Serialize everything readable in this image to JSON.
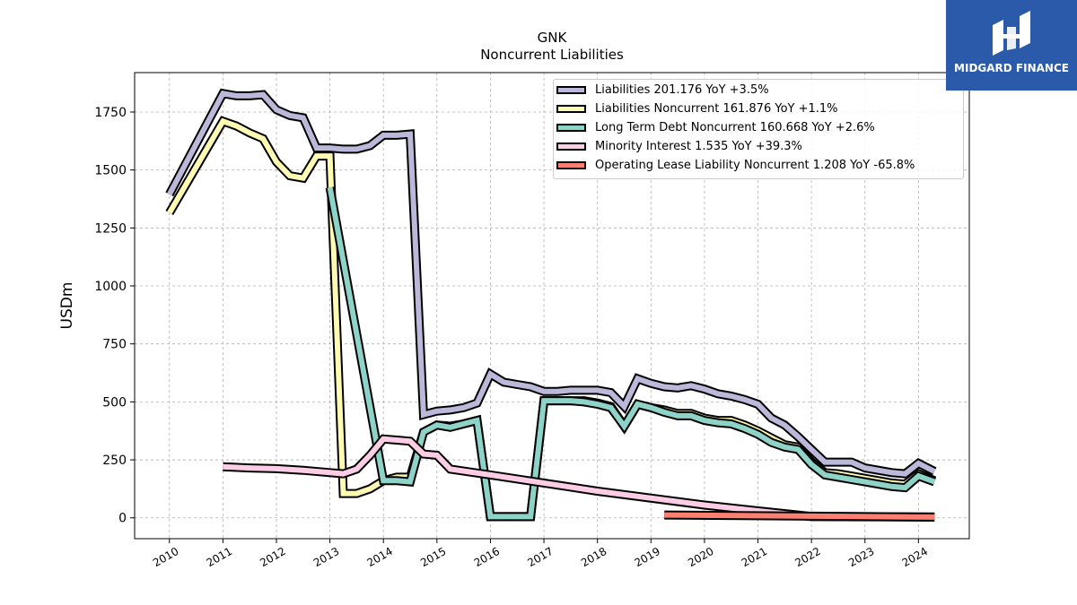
{
  "header": {
    "title": "GNK",
    "subtitle": "Noncurrent  Liabilities"
  },
  "logo": {
    "text": "MIDGARD FINANCE",
    "background": "#2b5aaa"
  },
  "chart_data": {
    "type": "line",
    "ylabel": "USDm",
    "xlabel": "",
    "xlim": [
      2009.35,
      2024.95
    ],
    "ylim": [
      -90,
      1920
    ],
    "grid": true,
    "legend_position": "top-right",
    "x_ticks": [
      "2010",
      "2011",
      "2012",
      "2013",
      "2014",
      "2015",
      "2016",
      "2017",
      "2018",
      "2019",
      "2020",
      "2021",
      "2022",
      "2023",
      "2024"
    ],
    "y_ticks": [
      "0",
      "250",
      "500",
      "750",
      "1000",
      "1250",
      "1500",
      "1750"
    ],
    "series": [
      {
        "name": "Liabilities",
        "legend": "Liabilities  201.176 YoY +3.5%",
        "color": "#bcb8d9",
        "points": [
          [
            2010.0,
            1395
          ],
          [
            2011.0,
            1830
          ],
          [
            2011.25,
            1820
          ],
          [
            2011.5,
            1820
          ],
          [
            2011.75,
            1825
          ],
          [
            2012.0,
            1760
          ],
          [
            2012.25,
            1735
          ],
          [
            2012.5,
            1725
          ],
          [
            2012.75,
            1595
          ],
          [
            2013.0,
            1595
          ],
          [
            2013.25,
            1590
          ],
          [
            2013.5,
            1590
          ],
          [
            2013.75,
            1605
          ],
          [
            2014.0,
            1650
          ],
          [
            2014.25,
            1650
          ],
          [
            2014.5,
            1655
          ],
          [
            2014.75,
            445
          ],
          [
            2015.0,
            460
          ],
          [
            2015.25,
            465
          ],
          [
            2015.5,
            475
          ],
          [
            2015.75,
            495
          ],
          [
            2016.0,
            620
          ],
          [
            2016.25,
            585
          ],
          [
            2016.5,
            575
          ],
          [
            2016.75,
            565
          ],
          [
            2017.0,
            545
          ],
          [
            2017.25,
            545
          ],
          [
            2017.5,
            550
          ],
          [
            2017.75,
            550
          ],
          [
            2018.0,
            550
          ],
          [
            2018.25,
            540
          ],
          [
            2018.5,
            480
          ],
          [
            2018.75,
            600
          ],
          [
            2019.0,
            580
          ],
          [
            2019.25,
            565
          ],
          [
            2019.5,
            560
          ],
          [
            2019.75,
            570
          ],
          [
            2020.0,
            555
          ],
          [
            2020.25,
            535
          ],
          [
            2020.5,
            525
          ],
          [
            2020.75,
            510
          ],
          [
            2021.0,
            490
          ],
          [
            2021.25,
            430
          ],
          [
            2021.5,
            400
          ],
          [
            2021.75,
            350
          ],
          [
            2022.0,
            295
          ],
          [
            2022.25,
            240
          ],
          [
            2022.5,
            240
          ],
          [
            2022.75,
            240
          ],
          [
            2023.0,
            215
          ],
          [
            2023.25,
            205
          ],
          [
            2023.5,
            195
          ],
          [
            2023.75,
            190
          ],
          [
            2024.0,
            235
          ],
          [
            2024.3,
            200
          ]
        ]
      },
      {
        "name": "Liabilities Noncurrent",
        "legend": "Liabilities Noncurrent  161.876 YoY +1.1%",
        "color": "#fffbb3",
        "points": [
          [
            2010.0,
            1315
          ],
          [
            2011.0,
            1710
          ],
          [
            2011.25,
            1690
          ],
          [
            2011.5,
            1660
          ],
          [
            2011.75,
            1635
          ],
          [
            2012.0,
            1535
          ],
          [
            2012.25,
            1475
          ],
          [
            2012.5,
            1465
          ],
          [
            2012.75,
            1560
          ],
          [
            2013.0,
            1560
          ],
          [
            2013.25,
            105
          ],
          [
            2013.5,
            105
          ],
          [
            2013.75,
            125
          ],
          [
            2014.0,
            160
          ],
          [
            2014.25,
            175
          ],
          [
            2014.5,
            175
          ],
          [
            2014.75,
            370
          ],
          [
            2015.0,
            400
          ],
          [
            2015.25,
            395
          ],
          [
            2015.5,
            405
          ],
          [
            2015.75,
            420
          ],
          [
            2016.0,
            5
          ],
          [
            2016.25,
            5
          ],
          [
            2016.5,
            5
          ],
          [
            2016.75,
            5
          ],
          [
            2017.0,
            505
          ],
          [
            2017.25,
            505
          ],
          [
            2017.5,
            505
          ],
          [
            2017.75,
            505
          ],
          [
            2018.0,
            495
          ],
          [
            2018.25,
            480
          ],
          [
            2018.5,
            395
          ],
          [
            2018.75,
            490
          ],
          [
            2019.0,
            475
          ],
          [
            2019.25,
            465
          ],
          [
            2019.5,
            450
          ],
          [
            2019.75,
            450
          ],
          [
            2020.0,
            430
          ],
          [
            2020.25,
            420
          ],
          [
            2020.5,
            420
          ],
          [
            2020.75,
            400
          ],
          [
            2021.0,
            375
          ],
          [
            2021.25,
            345
          ],
          [
            2021.5,
            315
          ],
          [
            2021.75,
            305
          ],
          [
            2022.0,
            240
          ],
          [
            2022.25,
            195
          ],
          [
            2022.5,
            190
          ],
          [
            2022.75,
            180
          ],
          [
            2023.0,
            170
          ],
          [
            2023.25,
            160
          ],
          [
            2023.5,
            150
          ],
          [
            2023.75,
            145
          ],
          [
            2024.0,
            190
          ],
          [
            2024.3,
            160
          ]
        ]
      },
      {
        "name": "Long Term Debt Noncurrent",
        "legend": "Long Term Debt Noncurrent  160.668 YoY +2.6%",
        "color": "#8dd3c7",
        "points": [
          [
            2013.0,
            1425
          ],
          [
            2014.0,
            160
          ],
          [
            2014.25,
            160
          ],
          [
            2014.5,
            155
          ],
          [
            2014.75,
            370
          ],
          [
            2015.0,
            400
          ],
          [
            2015.25,
            390
          ],
          [
            2015.5,
            405
          ],
          [
            2015.75,
            420
          ],
          [
            2016.0,
            5
          ],
          [
            2016.25,
            5
          ],
          [
            2016.5,
            5
          ],
          [
            2016.75,
            5
          ],
          [
            2017.0,
            505
          ],
          [
            2017.25,
            505
          ],
          [
            2017.5,
            505
          ],
          [
            2017.75,
            500
          ],
          [
            2018.0,
            490
          ],
          [
            2018.25,
            475
          ],
          [
            2018.5,
            395
          ],
          [
            2018.75,
            490
          ],
          [
            2019.0,
            475
          ],
          [
            2019.25,
            455
          ],
          [
            2019.5,
            440
          ],
          [
            2019.75,
            440
          ],
          [
            2020.0,
            420
          ],
          [
            2020.25,
            410
          ],
          [
            2020.5,
            405
          ],
          [
            2020.75,
            385
          ],
          [
            2021.0,
            360
          ],
          [
            2021.25,
            325
          ],
          [
            2021.5,
            305
          ],
          [
            2021.75,
            295
          ],
          [
            2022.0,
            230
          ],
          [
            2022.25,
            185
          ],
          [
            2022.5,
            175
          ],
          [
            2022.75,
            165
          ],
          [
            2023.0,
            155
          ],
          [
            2023.25,
            145
          ],
          [
            2023.5,
            135
          ],
          [
            2023.75,
            130
          ],
          [
            2024.0,
            180
          ],
          [
            2024.3,
            155
          ]
        ]
      },
      {
        "name": "Minority Interest",
        "legend": "Minority Interest  1.535 YoY +39.3%",
        "color": "#fccde5",
        "points": [
          [
            2011.0,
            220
          ],
          [
            2011.5,
            215
          ],
          [
            2012.0,
            212
          ],
          [
            2012.5,
            205
          ],
          [
            2013.0,
            195
          ],
          [
            2013.25,
            190
          ],
          [
            2013.5,
            210
          ],
          [
            2013.75,
            270
          ],
          [
            2014.0,
            340
          ],
          [
            2014.25,
            335
          ],
          [
            2014.5,
            330
          ],
          [
            2014.75,
            275
          ],
          [
            2015.0,
            270
          ],
          [
            2015.25,
            210
          ],
          [
            2016.0,
            185
          ],
          [
            2018.0,
            115
          ],
          [
            2020.0,
            55
          ],
          [
            2021.0,
            30
          ],
          [
            2021.75,
            12
          ],
          [
            2022.0,
            5
          ],
          [
            2024.3,
            3
          ]
        ]
      },
      {
        "name": "Operating Lease Liability Noncurrent",
        "legend": "Operating Lease Liability Noncurrent  1.208 YoY -65.8%",
        "color": "#fb8072",
        "points": [
          [
            2019.25,
            12
          ],
          [
            2024.3,
            3
          ]
        ]
      }
    ]
  }
}
